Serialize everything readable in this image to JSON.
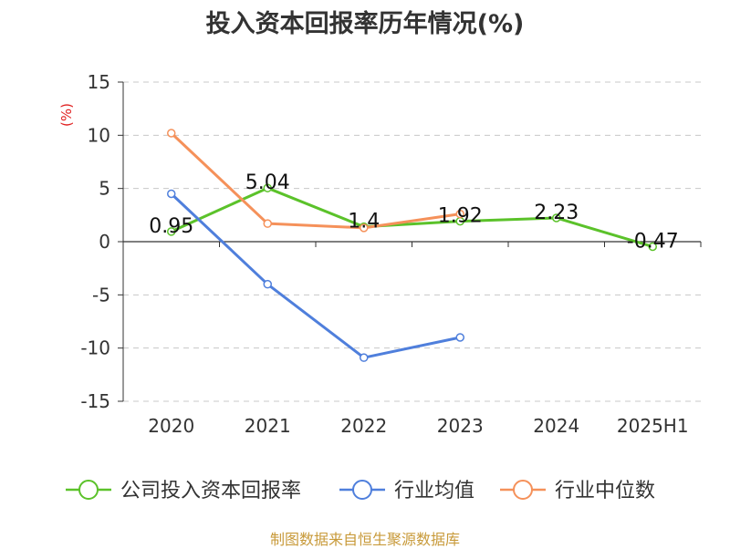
{
  "chart_data": {
    "type": "line",
    "title": "投入资本回报率历年情况(%)",
    "ylabel": "(%)",
    "categories": [
      "2020",
      "2021",
      "2022",
      "2023",
      "2024",
      "2025H1"
    ],
    "ylim": [
      -15,
      15
    ],
    "yticks": [
      15,
      10,
      5,
      0,
      -5,
      -10,
      -15
    ],
    "grid": true,
    "legend_position": "bottom",
    "series": [
      {
        "name": "公司投入资本回报率",
        "color": "#5bc22a",
        "values": [
          0.95,
          5.04,
          1.4,
          1.92,
          2.23,
          -0.47
        ],
        "labels": [
          "0.95",
          "5.04",
          "1.4",
          "1.92",
          "2.23",
          "-0.47"
        ]
      },
      {
        "name": "行业均值",
        "color": "#4f7fdc",
        "values": [
          4.5,
          -4.0,
          -10.9,
          -9.0,
          null,
          null
        ]
      },
      {
        "name": "行业中位数",
        "color": "#f5915a",
        "values": [
          10.2,
          1.7,
          1.3,
          2.6,
          null,
          null
        ]
      }
    ]
  },
  "source": "制图数据来自恒生聚源数据库"
}
